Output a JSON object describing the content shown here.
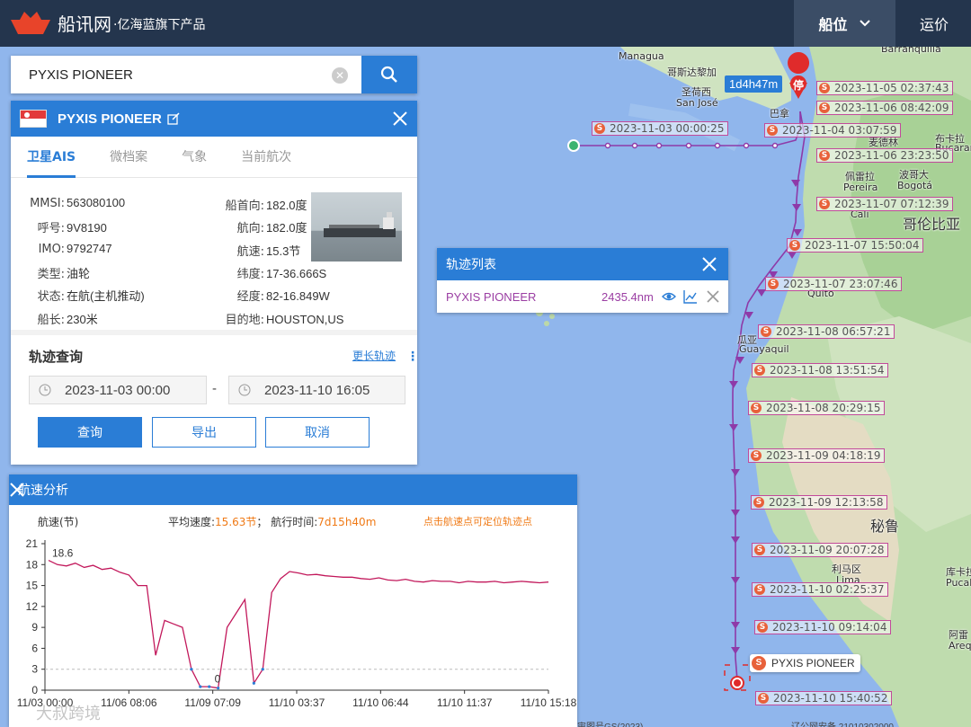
{
  "topbar": {
    "logo_text": "船讯网",
    "logo_sub": "·亿海蓝旗下产品",
    "nav_position": "船位",
    "nav_freight": "运价"
  },
  "search": {
    "value": "PYXIS PIONEER",
    "placeholder": ""
  },
  "ship": {
    "name": "PYXIS PIONEER",
    "tabs": [
      "卫星AIS",
      "微档案",
      "气象",
      "当前航次"
    ],
    "active_tab": "卫星AIS",
    "left_fields": [
      {
        "k": "MMSI:",
        "v": "563080100"
      },
      {
        "k": "呼号:",
        "v": "9V8190"
      },
      {
        "k": "IMO:",
        "v": "9792747"
      },
      {
        "k": "类型:",
        "v": "油轮"
      },
      {
        "k": "状态:",
        "v": "在航(主机推动)"
      },
      {
        "k": "船长:",
        "v": "230米"
      }
    ],
    "right_fields": [
      {
        "k": "船首向:",
        "v": "182.0度"
      },
      {
        "k": "航向:",
        "v": "182.0度"
      },
      {
        "k": "航速:",
        "v": "15.3节"
      },
      {
        "k": "纬度:",
        "v": "17-36.666S"
      },
      {
        "k": "经度:",
        "v": "82-16.849W"
      },
      {
        "k": "目的地:",
        "v": "HOUSTON,US"
      }
    ]
  },
  "track_query": {
    "title": "轨迹查询",
    "more_link": "更长轨迹",
    "start": "2023-11-03 00:00",
    "dash": "-",
    "end": "2023-11-10 16:05",
    "query_btn": "查询",
    "export_btn": "导出",
    "cancel_btn": "取消"
  },
  "track_list": {
    "title": "轨迹列表",
    "ship": "PYXIS PIONEER",
    "distance": "2435.4nm"
  },
  "map": {
    "duration": "1d4h47m",
    "stop_label": "停",
    "ship_tag": "PYXIS PIONEER",
    "place_labels": {
      "managua": "Managua",
      "nicaragua": "哥斯达黎加",
      "sanjose_cn": "圣荷西",
      "sanjose": "San José",
      "panama": "巴拿",
      "barranquilla": "Barranquilla",
      "bucaramanga": "布卡拉",
      "bucaramanga_en": "Bucaram",
      "medellin": "麦德林",
      "pereira": "佩雷拉",
      "pereira_en": "Pereira",
      "cali": "Cali",
      "bogota_cn": "波哥大",
      "bogota": "Bogotá",
      "colombia": "哥伦比亚",
      "quito": "Quito",
      "guayaquil_cn": "瓜亚",
      "guayaquil": "Guayaquil",
      "peru": "秘鲁",
      "lima_cn": "利马区",
      "lima": "Lima",
      "arequipa_cn": "阿雷",
      "arequipa": "Arequ",
      "pucallpa_cn": "库卡拉",
      "pucallpa": "Pucall",
      "footer_1": "审图号GS(2023)...",
      "footer_2": "辽公网安备 21010302000..."
    },
    "track_points": [
      "2023-11-05 02:37:43",
      "2023-11-06 08:42:09",
      "2023-11-03 00:00:25",
      "2023-11-04 03:07:59",
      "2023-11-06 23:23:50",
      "2023-11-07 07:12:39",
      "2023-11-07 15:50:04",
      "2023-11-07 23:07:46",
      "2023-11-08 06:57:21",
      "2023-11-08 13:51:54",
      "2023-11-08 20:29:15",
      "2023-11-09 04:18:19",
      "2023-11-09 12:13:58",
      "2023-11-09 20:07:28",
      "2023-11-10 02:25:37",
      "2023-11-10 09:14:04",
      "2023-11-10 15:40:52"
    ]
  },
  "speed": {
    "title": "航速分析",
    "ylabel": "航速(节)",
    "avg_label": "平均速度:",
    "avg_value": "15.63节",
    "sep": "；",
    "time_label": "航行时间:",
    "time_value": "7d15h40m",
    "hint": "点击航速点可定位轨迹点",
    "max_label": "18.6",
    "zero_label": "0",
    "watermark": "大叔跨境"
  },
  "chart_data": {
    "type": "line",
    "title": "航速分析",
    "ylabel": "航速(节)",
    "ylim": [
      0,
      21
    ],
    "yticks": [
      0,
      3,
      6,
      9,
      12,
      15,
      18,
      21
    ],
    "xticks": [
      "11/03 00:00",
      "11/06 08:06",
      "11/09 07:09",
      "11/10 03:37",
      "11/10 06:44",
      "11/10 11:37",
      "11/10 15:18"
    ],
    "series": [
      {
        "color": "#c2185b",
        "values": [
          18.6,
          18.0,
          17.8,
          18.2,
          17.6,
          17.9,
          17.3,
          17.5,
          16.9,
          16.5,
          15.0,
          15.0,
          5.0,
          10.0,
          9.5,
          9.0,
          3.0,
          0.5,
          0.5,
          0.3,
          9.0,
          11.0,
          13.0,
          1.0,
          3.0,
          14.0,
          16.0,
          17.0,
          16.8,
          16.5,
          16.6,
          16.4,
          16.3,
          16.2,
          16.2,
          16.0,
          15.9,
          16.1,
          15.8,
          15.7,
          15.9,
          15.6,
          15.5,
          15.7,
          15.6,
          15.6,
          15.4,
          15.6,
          15.5,
          15.5,
          15.6,
          15.4,
          15.5,
          15.6,
          15.5,
          15.4,
          15.5
        ]
      }
    ],
    "reference_line": 3,
    "grid": true
  }
}
